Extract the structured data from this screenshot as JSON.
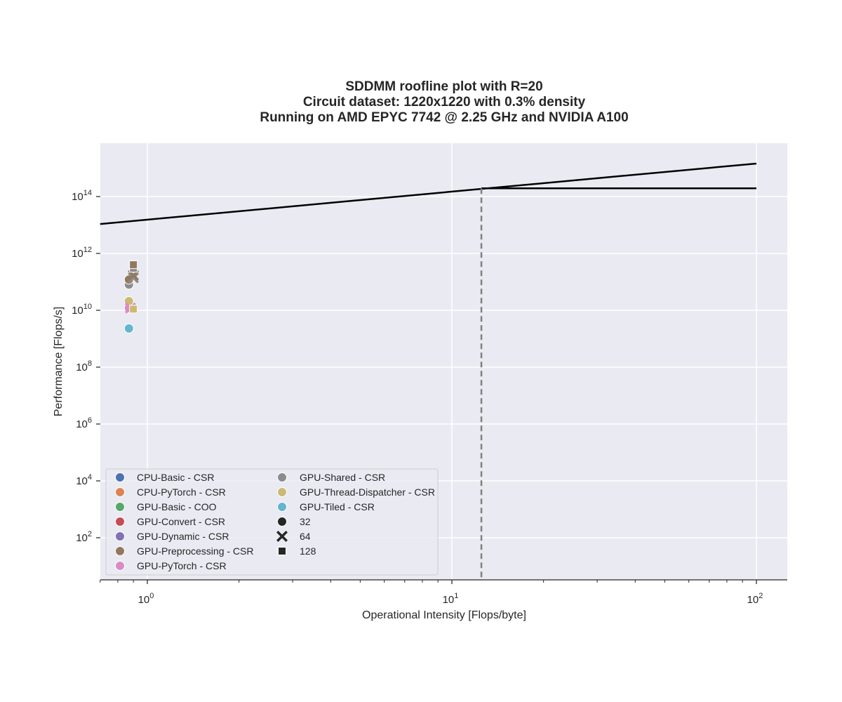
{
  "chart_data": {
    "type": "scatter",
    "title_lines": [
      "SDDMM roofline plot with R=20",
      "Circuit dataset: 1220x1220 with 0.3% density",
      "Running on AMD EPYC 7742 @ 2.25 GHz and NVIDIA A100"
    ],
    "xlabel": "Operational Intensity [Flops/byte]",
    "ylabel": "Performance [Flops/s]",
    "x_scale": "log",
    "y_scale": "log",
    "xlim": [
      0.7,
      128
    ],
    "ylim": [
      4,
      1e+16
    ],
    "x_ticks": [
      {
        "base": "10",
        "exp": "0",
        "value": 1
      },
      {
        "base": "10",
        "exp": "1",
        "value": 10
      },
      {
        "base": "10",
        "exp": "2",
        "value": 100
      }
    ],
    "y_ticks": [
      {
        "base": "10",
        "exp": "2",
        "value": 100
      },
      {
        "base": "10",
        "exp": "4",
        "value": 10000
      },
      {
        "base": "10",
        "exp": "6",
        "value": 1000000
      },
      {
        "base": "10",
        "exp": "8",
        "value": 100000000
      },
      {
        "base": "10",
        "exp": "10",
        "value": 10000000000
      },
      {
        "base": "10",
        "exp": "12",
        "value": 1000000000000
      },
      {
        "base": "10",
        "exp": "14",
        "value": 100000000000000
      }
    ],
    "grid": true,
    "roofline": {
      "memory_bound": {
        "x": [
          0.7,
          100
        ],
        "y": [
          10800000000000.0,
          1450000000000000.0
        ]
      },
      "compute_bound": {
        "x": [
          12.5,
          100
        ],
        "y": [
          195000000000000.0,
          195000000000000.0
        ]
      },
      "ridge_point_x": 12.5
    },
    "legend_position": "lower-left",
    "legend_hue": [
      {
        "name": "CPU-Basic - CSR",
        "color": "#4c72b0"
      },
      {
        "name": "CPU-PyTorch - CSR",
        "color": "#dd8452"
      },
      {
        "name": "GPU-Basic - COO",
        "color": "#55a868"
      },
      {
        "name": "GPU-Convert - CSR",
        "color": "#c44e52"
      },
      {
        "name": "GPU-Dynamic - CSR",
        "color": "#8172b3"
      },
      {
        "name": "GPU-Preprocessing - CSR",
        "color": "#937860"
      },
      {
        "name": "GPU-PyTorch - CSR",
        "color": "#da8bc3"
      },
      {
        "name": "GPU-Shared - CSR",
        "color": "#8c8c8c"
      },
      {
        "name": "GPU-Thread-Dispatcher - CSR",
        "color": "#ccb974"
      },
      {
        "name": "GPU-Tiled - CSR",
        "color": "#64b5cd"
      }
    ],
    "legend_style": [
      {
        "name": "32",
        "marker": "circle"
      },
      {
        "name": "64",
        "marker": "x"
      },
      {
        "name": "128",
        "marker": "square"
      }
    ],
    "points": [
      {
        "series": "GPU-Tiled - CSR",
        "size": "32",
        "x": 0.87,
        "y": 2300000000.0
      },
      {
        "series": "GPU-PyTorch - CSR",
        "size": "32",
        "x": 0.87,
        "y": 12000000000.0
      },
      {
        "series": "GPU-Thread-Dispatcher - CSR",
        "size": "32",
        "x": 0.87,
        "y": 21000000000.0
      },
      {
        "series": "GPU-Shared - CSR",
        "size": "32",
        "x": 0.87,
        "y": 80000000000.0
      },
      {
        "series": "GPU-Preprocessing - CSR",
        "size": "32",
        "x": 0.87,
        "y": 120000000000.0
      },
      {
        "series": "GPU-PyTorch - CSR",
        "size": "64",
        "x": 0.88,
        "y": 12000000000.0
      },
      {
        "series": "GPU-Shared - CSR",
        "size": "64",
        "x": 0.9,
        "y": 140000000000.0
      },
      {
        "series": "GPU-Preprocessing - CSR",
        "size": "64",
        "x": 0.9,
        "y": 170000000000.0
      },
      {
        "series": "GPU-Thread-Dispatcher - CSR",
        "size": "128",
        "x": 0.9,
        "y": 11000000000.0
      },
      {
        "series": "GPU-Shared - CSR",
        "size": "128",
        "x": 0.9,
        "y": 300000000000.0
      },
      {
        "series": "GPU-Preprocessing - CSR",
        "size": "128",
        "x": 0.9,
        "y": 400000000000.0
      }
    ]
  }
}
